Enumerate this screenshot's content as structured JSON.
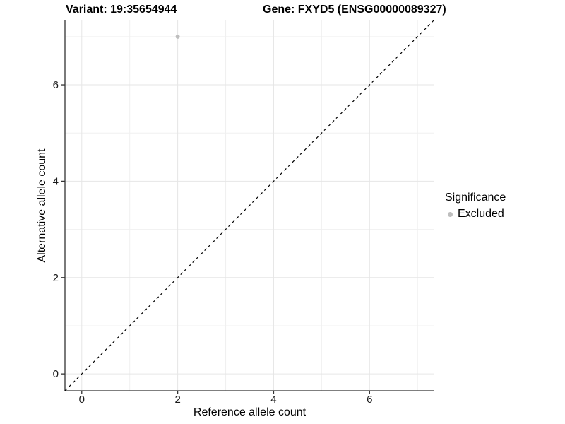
{
  "title": {
    "variant": "Variant: 19:35654944",
    "gene": "Gene: FXYD5 (ENSG00000089327)"
  },
  "axes": {
    "x_label": "Reference allele count",
    "y_label": "Alternative allele count"
  },
  "legend": {
    "title": "Significance",
    "items": [
      {
        "label": "Excluded",
        "color": "#bebebe"
      }
    ]
  },
  "colors": {
    "background": "#ffffff",
    "grid_major": "#e6e6e6",
    "grid_minor": "#f0f0f0",
    "axis_line": "#333333",
    "tick_text": "#1a1a1a",
    "reference_line": "#000000",
    "excluded_point": "#bebebe"
  },
  "chart_data": {
    "type": "scatter",
    "title": "Variant: 19:35654944   Gene: FXYD5 (ENSG00000089327)",
    "xlabel": "Reference allele count",
    "ylabel": "Alternative allele count",
    "xlim": [
      -0.35,
      7.35
    ],
    "ylim": [
      -0.35,
      7.35
    ],
    "x_major_breaks": [
      0,
      2,
      4,
      6
    ],
    "y_major_breaks": [
      0,
      2,
      4,
      6
    ],
    "x_minor_breaks": [
      1,
      3,
      5,
      7
    ],
    "y_minor_breaks": [
      1,
      3,
      5,
      7
    ],
    "grid": "on",
    "legend_position": "right",
    "series": [
      {
        "name": "Excluded",
        "color": "#bebebe",
        "points": [
          {
            "x": 2,
            "y": 7
          }
        ]
      }
    ],
    "reference_line": {
      "kind": "identity",
      "slope": 1,
      "intercept": 0,
      "style": "dashed",
      "color": "#000000"
    }
  }
}
